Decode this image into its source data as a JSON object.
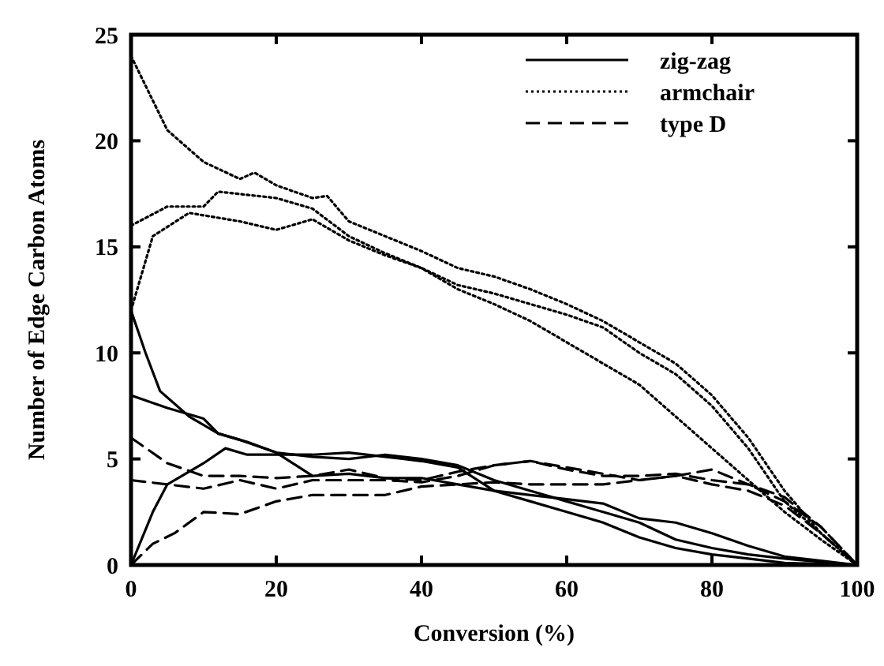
{
  "chart_data": {
    "type": "line",
    "xlabel": "Conversion (%)",
    "ylabel": "Number of Edge Carbon Atoms",
    "xlim": [
      0,
      100
    ],
    "ylim": [
      0,
      25
    ],
    "xticks": [
      0,
      20,
      40,
      60,
      80,
      100
    ],
    "yticks": [
      0,
      5,
      10,
      15,
      20,
      25
    ],
    "grid": false,
    "legend": "top right",
    "series": [
      {
        "name": "zig-zag",
        "color": "#000000",
        "line_style": "solid",
        "x": [
          0,
          2,
          4,
          8,
          12,
          16,
          20,
          25,
          30,
          35,
          40,
          45,
          50,
          55,
          60,
          65,
          70,
          75,
          80,
          85,
          90,
          100
        ],
        "values": [
          12,
          10,
          8.2,
          7,
          6.2,
          5.8,
          5.3,
          4.2,
          4.3,
          4.1,
          4.1,
          3.8,
          3.5,
          3,
          2.5,
          2,
          1.3,
          0.8,
          0.5,
          0.3,
          0.1,
          0
        ]
      },
      {
        "color": "#000000",
        "line_style": "solid",
        "x": [
          0,
          5,
          10,
          12,
          15,
          20,
          25,
          30,
          35,
          40,
          45,
          50,
          55,
          60,
          65,
          70,
          75,
          80,
          85,
          90,
          100
        ],
        "values": [
          8,
          7.4,
          6.9,
          6.2,
          5.9,
          5.3,
          5.1,
          5,
          5.2,
          5,
          4.7,
          4,
          3.5,
          3,
          2.5,
          2,
          1.2,
          0.8,
          0.5,
          0.3,
          0
        ]
      },
      {
        "color": "#000000",
        "line_style": "solid",
        "x": [
          0,
          3,
          5,
          10,
          13,
          16,
          20,
          25,
          30,
          35,
          40,
          45,
          50,
          55,
          60,
          65,
          70,
          75,
          80,
          85,
          90,
          95,
          100
        ],
        "values": [
          0,
          2.5,
          3.8,
          4.8,
          5.5,
          5.2,
          5.2,
          5.2,
          5.3,
          5.1,
          4.9,
          4.6,
          3.5,
          3.3,
          3.1,
          2.9,
          2.2,
          2,
          1.5,
          0.9,
          0.4,
          0.2,
          0
        ]
      },
      {
        "name": "armchair",
        "color": "#000000",
        "line_style": "dotted",
        "x": [
          0,
          5,
          10,
          15,
          17,
          20,
          25,
          27,
          30,
          35,
          40,
          45,
          50,
          55,
          60,
          65,
          70,
          75,
          80,
          85,
          90,
          95,
          100
        ],
        "values": [
          24,
          20.5,
          19,
          18.2,
          18.5,
          17.9,
          17.3,
          17.4,
          16.2,
          15.5,
          14.8,
          14,
          13.6,
          13,
          12.3,
          11.5,
          10.5,
          9.5,
          8,
          6,
          3.5,
          1.5,
          0
        ]
      },
      {
        "color": "#000000",
        "line_style": "dotted",
        "x": [
          0,
          5,
          10,
          12,
          20,
          25,
          30,
          35,
          40,
          45,
          50,
          55,
          60,
          65,
          70,
          75,
          80,
          85,
          90,
          95,
          100
        ],
        "values": [
          16,
          16.9,
          16.9,
          17.6,
          17.3,
          16.8,
          15.5,
          14.7,
          14,
          13.2,
          12.8,
          12.3,
          11.8,
          11.2,
          10,
          9,
          7.5,
          5.5,
          3,
          1.5,
          0
        ]
      },
      {
        "color": "#000000",
        "line_style": "dotted",
        "x": [
          0,
          3,
          8,
          15,
          20,
          25,
          30,
          35,
          40,
          45,
          50,
          55,
          60,
          65,
          70,
          75,
          80,
          85,
          90,
          95,
          100
        ],
        "values": [
          12,
          15.5,
          16.6,
          16.2,
          15.8,
          16.3,
          15.3,
          14.6,
          14,
          13,
          12.3,
          11.5,
          10.5,
          9.5,
          8.5,
          7,
          5.5,
          4,
          2.5,
          1.2,
          0
        ]
      },
      {
        "name": "type D",
        "color": "#000000",
        "line_style": "dashed",
        "x": [
          0,
          5,
          10,
          15,
          20,
          25,
          30,
          35,
          40,
          45,
          50,
          55,
          60,
          65,
          70,
          75,
          80,
          85,
          90,
          95,
          100
        ],
        "values": [
          6,
          4.8,
          4.2,
          4.2,
          4.1,
          4.2,
          4.5,
          4.1,
          4,
          4.4,
          4.7,
          4.9,
          4.5,
          4.2,
          4.2,
          4.3,
          4,
          3.8,
          3,
          1.8,
          0
        ]
      },
      {
        "color": "#000000",
        "line_style": "dashed",
        "x": [
          0,
          5,
          10,
          15,
          20,
          25,
          30,
          35,
          40,
          45,
          50,
          55,
          60,
          65,
          70,
          75,
          80,
          85,
          90,
          95,
          100
        ],
        "values": [
          4,
          3.8,
          3.6,
          4,
          3.6,
          4,
          4,
          4,
          3.9,
          4.2,
          4.7,
          4.9,
          4.6,
          4.3,
          4,
          4.2,
          4.5,
          3.8,
          3.2,
          1.8,
          0
        ]
      },
      {
        "color": "#000000",
        "line_style": "dashed",
        "x": [
          0,
          3,
          6,
          10,
          15,
          20,
          25,
          30,
          35,
          40,
          45,
          50,
          55,
          60,
          65,
          70,
          75,
          80,
          85,
          90,
          95,
          100
        ],
        "values": [
          0,
          1,
          1.5,
          2.5,
          2.4,
          3,
          3.3,
          3.3,
          3.3,
          3.7,
          3.8,
          3.9,
          3.8,
          3.8,
          3.8,
          4,
          4.2,
          3.8,
          3.5,
          2.8,
          1.5,
          0
        ]
      }
    ]
  }
}
